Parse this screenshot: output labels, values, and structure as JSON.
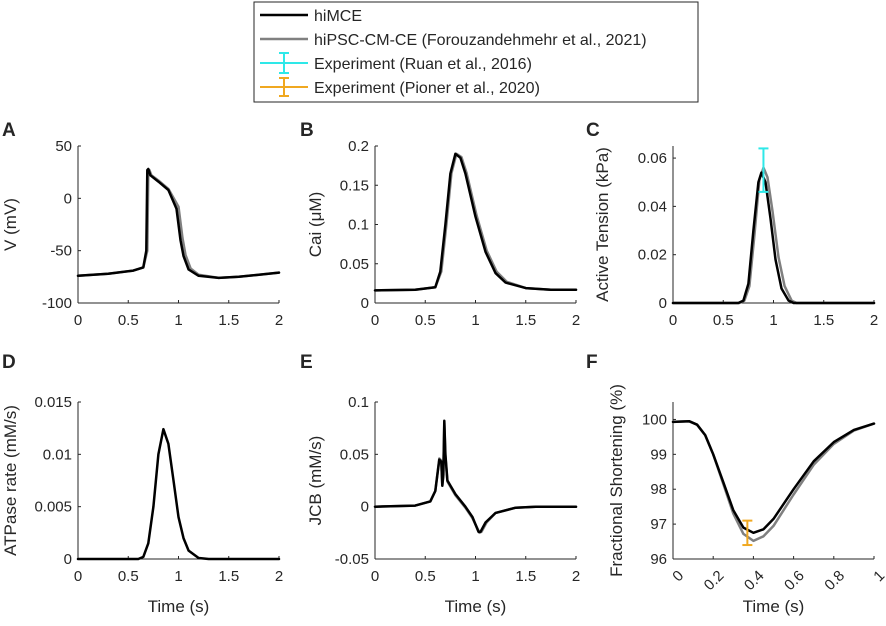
{
  "legend": {
    "entries": [
      {
        "label": "hiMCE",
        "color": "#000000",
        "style": "line"
      },
      {
        "label": "hiPSC-CM-CE (Forouzandehmehr et al., 2021)",
        "color": "#808080",
        "style": "line"
      },
      {
        "label": "Experiment (Ruan et al., 2016)",
        "color": "#2ee8e8",
        "style": "errorbar"
      },
      {
        "label": "Experiment (Pioner et al., 2020)",
        "color": "#f0a820",
        "style": "errorbar"
      }
    ]
  },
  "chart_data": [
    {
      "id": "A",
      "type": "line",
      "letter": "A",
      "xlabel": "",
      "ylabel": "V (mV)",
      "xlim": [
        0,
        2
      ],
      "ylim": [
        -100,
        50
      ],
      "xticks": [
        0,
        0.5,
        1,
        1.5,
        2
      ],
      "xtick_labels": [
        "0",
        "0.5",
        "1",
        "1.5",
        "2"
      ],
      "yticks": [
        -100,
        -50,
        0,
        50
      ],
      "ytick_labels": [
        "-100",
        "-50",
        "0",
        "50"
      ],
      "series": [
        {
          "name": "hiMCE",
          "color": "#000000",
          "x": [
            0,
            0.3,
            0.55,
            0.65,
            0.68,
            0.69,
            0.7,
            0.72,
            0.8,
            0.9,
            0.98,
            1.02,
            1.05,
            1.1,
            1.2,
            1.4,
            1.6,
            1.8,
            2.0
          ],
          "y": [
            -74,
            -72,
            -69,
            -66,
            -50,
            27,
            28,
            22,
            16,
            8,
            -10,
            -40,
            -55,
            -68,
            -74,
            -76,
            -75,
            -73,
            -71
          ]
        },
        {
          "name": "hiPSC-CM-CE",
          "color": "#808080",
          "x": [
            0,
            0.3,
            0.55,
            0.65,
            0.69,
            0.7,
            0.71,
            0.73,
            0.8,
            0.9,
            1.0,
            1.04,
            1.07,
            1.12,
            1.2,
            1.4,
            1.6,
            1.8,
            2.0
          ],
          "y": [
            -74,
            -72,
            -69,
            -66,
            -50,
            26,
            27,
            22,
            17,
            9,
            -8,
            -38,
            -54,
            -67,
            -73,
            -76,
            -75,
            -73,
            -71
          ]
        }
      ]
    },
    {
      "id": "B",
      "type": "line",
      "letter": "B",
      "xlabel": "",
      "ylabel": "Cai (μM)",
      "xlim": [
        0,
        2
      ],
      "ylim": [
        0,
        0.2
      ],
      "xticks": [
        0,
        0.5,
        1,
        1.5,
        2
      ],
      "xtick_labels": [
        "0",
        "0.5",
        "1",
        "1.5",
        "2"
      ],
      "yticks": [
        0,
        0.05,
        0.1,
        0.15,
        0.2
      ],
      "ytick_labels": [
        "0",
        "0.05",
        "0.1",
        "0.15",
        "0.2"
      ],
      "series": [
        {
          "name": "hiMCE",
          "color": "#000000",
          "x": [
            0,
            0.4,
            0.6,
            0.65,
            0.7,
            0.75,
            0.8,
            0.85,
            0.9,
            1.0,
            1.1,
            1.2,
            1.3,
            1.5,
            1.75,
            2.0
          ],
          "y": [
            0.016,
            0.017,
            0.02,
            0.04,
            0.1,
            0.165,
            0.19,
            0.185,
            0.165,
            0.11,
            0.065,
            0.038,
            0.026,
            0.019,
            0.017,
            0.017
          ]
        },
        {
          "name": "hiPSC-CM-CE",
          "color": "#808080",
          "x": [
            0,
            0.4,
            0.6,
            0.66,
            0.71,
            0.76,
            0.81,
            0.86,
            0.91,
            1.01,
            1.11,
            1.21,
            1.31,
            1.5,
            1.75,
            2.0
          ],
          "y": [
            0.016,
            0.017,
            0.02,
            0.04,
            0.1,
            0.165,
            0.19,
            0.186,
            0.166,
            0.112,
            0.067,
            0.04,
            0.027,
            0.019,
            0.017,
            0.017
          ]
        }
      ]
    },
    {
      "id": "C",
      "type": "line",
      "letter": "C",
      "xlabel": "",
      "ylabel": "Active Tension (kPa)",
      "xlim": [
        0,
        2
      ],
      "ylim": [
        0,
        0.065
      ],
      "xticks": [
        0,
        0.5,
        1,
        1.5,
        2
      ],
      "xtick_labels": [
        "0",
        "0.5",
        "1",
        "1.5",
        "2"
      ],
      "yticks": [
        0,
        0.02,
        0.04,
        0.06
      ],
      "ytick_labels": [
        "0",
        "0.02",
        "0.04",
        "0.06"
      ],
      "series": [
        {
          "name": "hiMCE",
          "color": "#000000",
          "x": [
            0,
            0.65,
            0.7,
            0.75,
            0.8,
            0.85,
            0.88,
            0.92,
            0.97,
            1.02,
            1.08,
            1.15,
            1.2,
            1.3,
            2.0
          ],
          "y": [
            0,
            0,
            0.001,
            0.008,
            0.03,
            0.05,
            0.054,
            0.05,
            0.035,
            0.018,
            0.006,
            0.001,
            0,
            0,
            0
          ]
        },
        {
          "name": "hiPSC-CM-CE",
          "color": "#808080",
          "x": [
            0,
            0.66,
            0.71,
            0.76,
            0.81,
            0.86,
            0.9,
            0.94,
            0.99,
            1.05,
            1.11,
            1.18,
            1.23,
            1.33,
            2.0
          ],
          "y": [
            0,
            0,
            0.001,
            0.007,
            0.028,
            0.051,
            0.056,
            0.052,
            0.038,
            0.019,
            0.007,
            0.001,
            0,
            0,
            0
          ]
        }
      ],
      "errorbars": [
        {
          "name": "Experiment (Ruan et al., 2016)",
          "color": "#2ee8e8",
          "x": 0.9,
          "y": 0.055,
          "lo": 0.046,
          "hi": 0.064
        }
      ]
    },
    {
      "id": "D",
      "type": "line",
      "letter": "D",
      "xlabel": "Time (s)",
      "ylabel": "ATPase rate (mM/s)",
      "xlim": [
        0,
        2
      ],
      "ylim": [
        0,
        0.015
      ],
      "xticks": [
        0,
        0.5,
        1,
        1.5,
        2
      ],
      "xtick_labels": [
        "0",
        "0.5",
        "1",
        "1.5",
        "2"
      ],
      "yticks": [
        0,
        0.005,
        0.01,
        0.015
      ],
      "ytick_labels": [
        "0",
        "0.005",
        "0.01",
        "0.015"
      ],
      "series": [
        {
          "name": "hiMCE",
          "color": "#000000",
          "x": [
            0,
            0.6,
            0.65,
            0.7,
            0.75,
            0.8,
            0.85,
            0.9,
            0.95,
            1.0,
            1.05,
            1.1,
            1.2,
            1.3,
            2.0
          ],
          "y": [
            0,
            0,
            0.0002,
            0.0015,
            0.005,
            0.01,
            0.0124,
            0.011,
            0.0075,
            0.004,
            0.002,
            0.0008,
            0.0001,
            0,
            0
          ]
        }
      ]
    },
    {
      "id": "E",
      "type": "line",
      "letter": "E",
      "xlabel": "Time (s)",
      "ylabel": "JCB (mM/s)",
      "xlim": [
        0,
        2
      ],
      "ylim": [
        -0.05,
        0.1
      ],
      "xticks": [
        0,
        0.5,
        1,
        1.5,
        2
      ],
      "xtick_labels": [
        "0",
        "0.5",
        "1",
        "1.5",
        "2"
      ],
      "yticks": [
        -0.05,
        0,
        0.05,
        0.1
      ],
      "ytick_labels": [
        "-0.05",
        "0",
        "0.05",
        "0.1"
      ],
      "series": [
        {
          "name": "hiMCE",
          "color": "#000000",
          "x": [
            0,
            0.4,
            0.55,
            0.6,
            0.64,
            0.66,
            0.67,
            0.68,
            0.69,
            0.7,
            0.72,
            0.8,
            0.9,
            0.97,
            1.03,
            1.05,
            1.1,
            1.2,
            1.4,
            1.6,
            2.0
          ],
          "y": [
            0,
            0.001,
            0.005,
            0.015,
            0.045,
            0.043,
            0.02,
            0.03,
            0.082,
            0.05,
            0.025,
            0.012,
            0.0,
            -0.01,
            -0.024,
            -0.024,
            -0.015,
            -0.006,
            -0.001,
            0,
            0
          ]
        },
        {
          "name": "hiPSC-CM-CE",
          "color": "#808080",
          "x": [
            0,
            0.4,
            0.55,
            0.6,
            0.64,
            0.66,
            0.67,
            0.68,
            0.69,
            0.7,
            0.72,
            0.8,
            0.9,
            0.97,
            1.04,
            1.06,
            1.11,
            1.2,
            1.4,
            1.6,
            2.0
          ],
          "y": [
            0,
            0.001,
            0.005,
            0.015,
            0.046,
            0.044,
            0.02,
            0.03,
            0.08,
            0.048,
            0.024,
            0.011,
            -0.001,
            -0.011,
            -0.025,
            -0.024,
            -0.015,
            -0.006,
            -0.001,
            0,
            0
          ]
        }
      ]
    },
    {
      "id": "F",
      "type": "line",
      "letter": "F",
      "xlabel": "Time (s)",
      "ylabel": "Fractional Shortening (%)",
      "xlim": [
        0,
        1
      ],
      "ylim": [
        96,
        100.5
      ],
      "xticks": [
        0,
        0.2,
        0.4,
        0.6,
        0.8,
        1
      ],
      "xtick_labels": [
        "0",
        "0.2",
        "0.4",
        "0.6",
        "0.8",
        "1"
      ],
      "yticks": [
        96,
        97,
        98,
        99,
        100
      ],
      "ytick_labels": [
        "96",
        "97",
        "98",
        "99",
        "100"
      ],
      "series": [
        {
          "name": "hiMCE",
          "color": "#000000",
          "x": [
            0,
            0.08,
            0.12,
            0.16,
            0.2,
            0.25,
            0.3,
            0.35,
            0.4,
            0.45,
            0.5,
            0.6,
            0.7,
            0.8,
            0.9,
            1.0
          ],
          "y": [
            99.93,
            99.95,
            99.85,
            99.55,
            99.0,
            98.2,
            97.4,
            96.9,
            96.75,
            96.85,
            97.15,
            98.0,
            98.8,
            99.35,
            99.7,
            99.88
          ]
        },
        {
          "name": "hiPSC-CM-CE",
          "color": "#808080",
          "x": [
            0,
            0.08,
            0.12,
            0.16,
            0.2,
            0.25,
            0.3,
            0.35,
            0.4,
            0.45,
            0.5,
            0.6,
            0.7,
            0.8,
            0.9,
            1.0
          ],
          "y": [
            99.93,
            99.95,
            99.85,
            99.55,
            99.0,
            98.15,
            97.3,
            96.72,
            96.52,
            96.65,
            96.95,
            97.85,
            98.7,
            99.3,
            99.68,
            99.88
          ]
        }
      ],
      "errorbars": [
        {
          "name": "Experiment (Pioner et al., 2020)",
          "color": "#f0a820",
          "x": 0.37,
          "y": 96.75,
          "lo": 96.4,
          "hi": 97.1
        }
      ]
    }
  ]
}
